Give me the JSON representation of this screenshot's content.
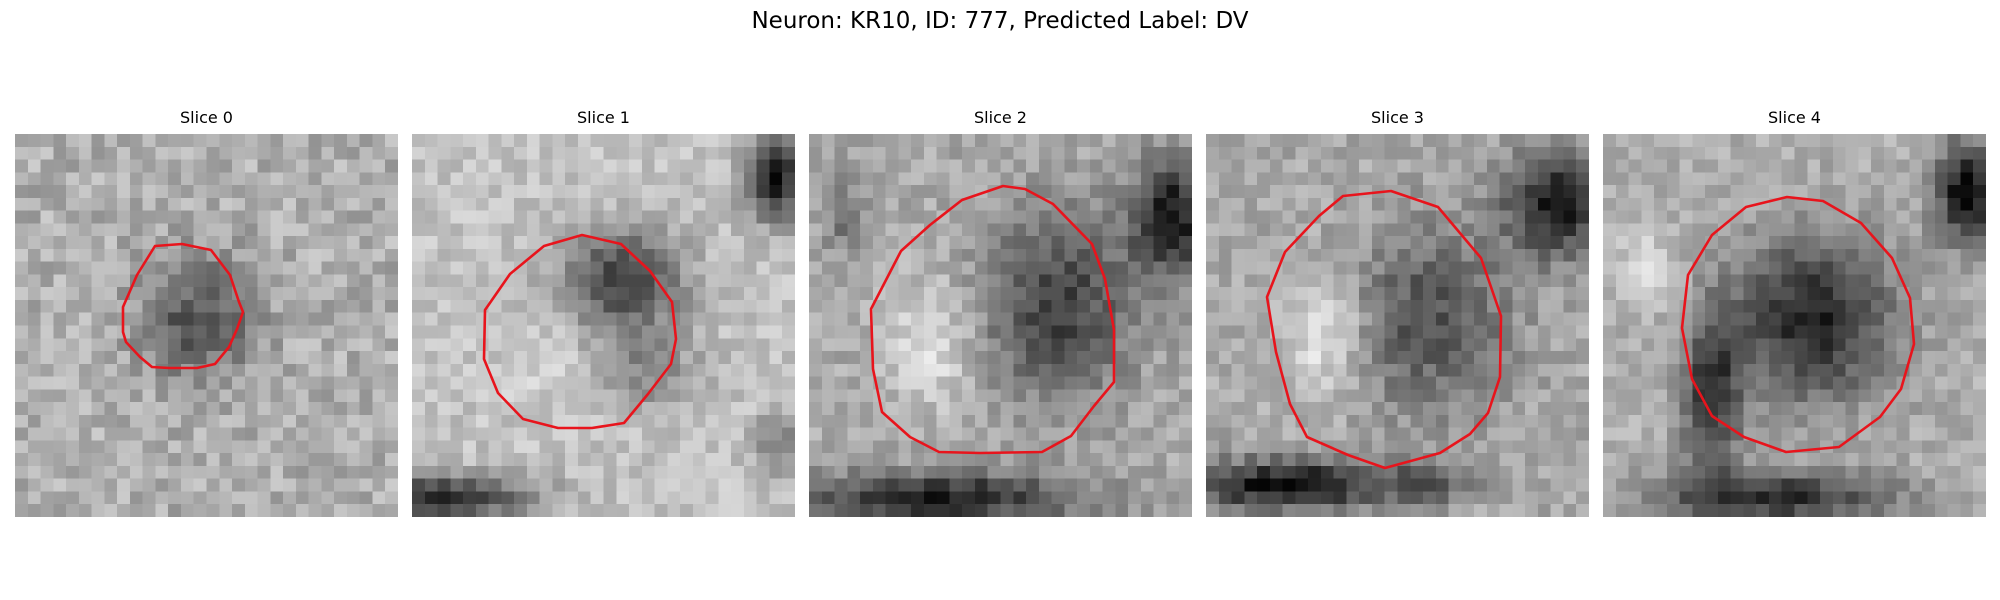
{
  "title": "Neuron: KR10, ID: 777, Predicted Label: DV",
  "contour_color": "#e8141c",
  "panels": [
    {
      "title": "Slice 0"
    },
    {
      "title": "Slice 1"
    },
    {
      "title": "Slice 2"
    },
    {
      "title": "Slice 3"
    },
    {
      "title": "Slice 4"
    }
  ]
}
